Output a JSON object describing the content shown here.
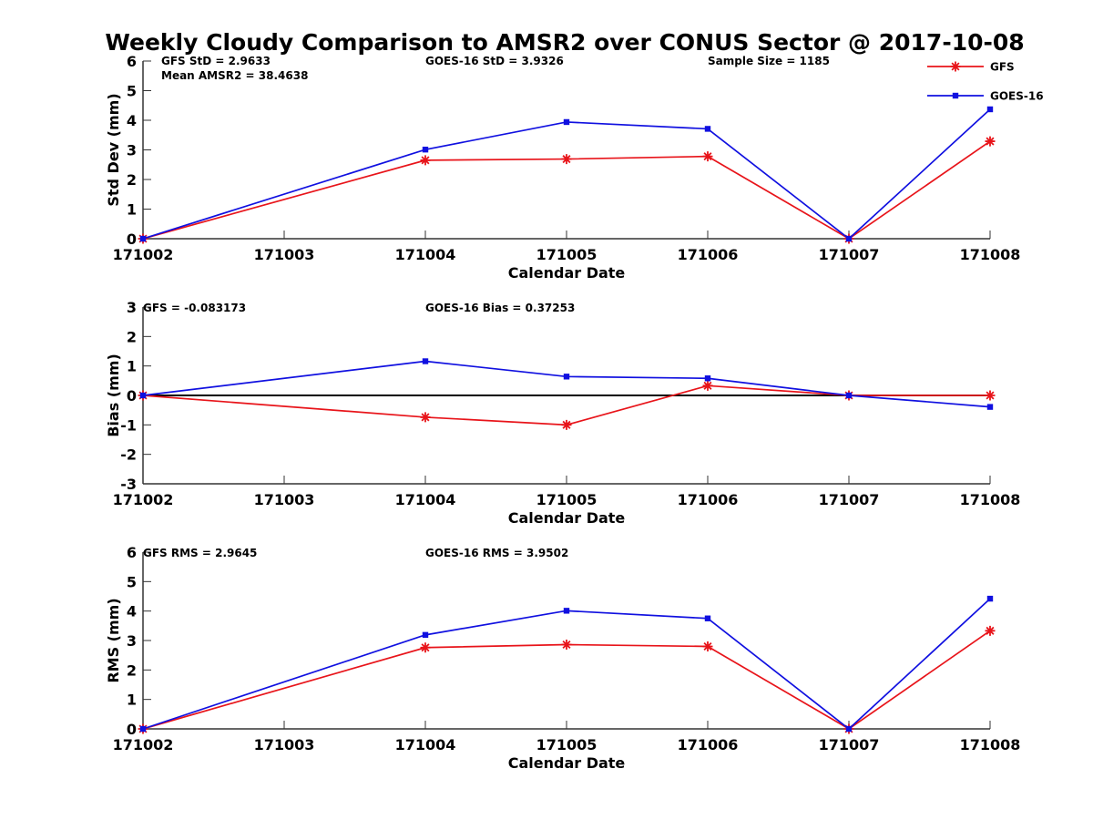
{
  "figure_title": "Weekly Cloudy Comparison to AMSR2 over CONUS Sector @ 2017-10-08",
  "colors": {
    "GFS": "#e8141a",
    "GOES-16": "#1010e0",
    "axis": "#333333",
    "zero_line": "#000000"
  },
  "legend": {
    "placement": "top-right",
    "entries": [
      "GFS",
      "GOES-16"
    ]
  },
  "chart_data": [
    {
      "type": "line",
      "ylabel": "Std Dev (mm)",
      "xlabel": "Calendar Date",
      "ylim": [
        0,
        6
      ],
      "yticks": [
        0,
        1,
        2,
        3,
        4,
        5,
        6
      ],
      "categories": [
        "171002",
        "171003",
        "171004",
        "171005",
        "171006",
        "171007",
        "171008"
      ],
      "annotations": [
        "GFS StD = 2.9633",
        "Mean AMSR2 = 38.4638",
        "GOES-16 StD = 3.9326",
        "Sample Size = 1185"
      ],
      "zero_line": false,
      "series": [
        {
          "name": "GFS",
          "marker": "star",
          "points": [
            [
              "171002",
              0
            ],
            [
              "171004",
              2.65
            ],
            [
              "171005",
              2.69
            ],
            [
              "171006",
              2.78
            ],
            [
              "171007",
              0
            ],
            [
              "171008",
              3.29
            ]
          ]
        },
        {
          "name": "GOES-16",
          "marker": "square",
          "points": [
            [
              "171002",
              0
            ],
            [
              "171004",
              3.01
            ],
            [
              "171005",
              3.94
            ],
            [
              "171006",
              3.71
            ],
            [
              "171007",
              0
            ],
            [
              "171008",
              4.37
            ]
          ]
        }
      ]
    },
    {
      "type": "line",
      "ylabel": "Bias (mm)",
      "xlabel": "Calendar Date",
      "ylim": [
        -3,
        3
      ],
      "yticks": [
        -3,
        -2,
        -1,
        0,
        1,
        2,
        3
      ],
      "categories": [
        "171002",
        "171003",
        "171004",
        "171005",
        "171006",
        "171007",
        "171008"
      ],
      "annotations": [
        "GFS = -0.083173",
        "GOES-16 Bias  = 0.37253"
      ],
      "zero_line": true,
      "series": [
        {
          "name": "GFS",
          "marker": "star",
          "points": [
            [
              "171002",
              0
            ],
            [
              "171004",
              -0.74
            ],
            [
              "171005",
              -1.0
            ],
            [
              "171006",
              0.33
            ],
            [
              "171007",
              0
            ],
            [
              "171008",
              0
            ]
          ]
        },
        {
          "name": "GOES-16",
          "marker": "square",
          "points": [
            [
              "171002",
              0
            ],
            [
              "171004",
              1.16
            ],
            [
              "171005",
              0.64
            ],
            [
              "171006",
              0.58
            ],
            [
              "171007",
              0
            ],
            [
              "171008",
              -0.39
            ]
          ]
        }
      ]
    },
    {
      "type": "line",
      "ylabel": "RMS (mm)",
      "xlabel": "Calendar Date",
      "ylim": [
        0,
        6
      ],
      "yticks": [
        0,
        1,
        2,
        3,
        4,
        5,
        6
      ],
      "categories": [
        "171002",
        "171003",
        "171004",
        "171005",
        "171006",
        "171007",
        "171008"
      ],
      "annotations": [
        "GFS RMS = 2.9645",
        "GOES-16 RMS = 3.9502"
      ],
      "zero_line": false,
      "series": [
        {
          "name": "GFS",
          "marker": "star",
          "points": [
            [
              "171002",
              0
            ],
            [
              "171004",
              2.76
            ],
            [
              "171005",
              2.86
            ],
            [
              "171006",
              2.8
            ],
            [
              "171007",
              0
            ],
            [
              "171008",
              3.33
            ]
          ]
        },
        {
          "name": "GOES-16",
          "marker": "square",
          "points": [
            [
              "171002",
              0
            ],
            [
              "171004",
              3.19
            ],
            [
              "171005",
              4.01
            ],
            [
              "171006",
              3.75
            ],
            [
              "171007",
              0
            ],
            [
              "171008",
              4.42
            ]
          ]
        }
      ]
    }
  ]
}
